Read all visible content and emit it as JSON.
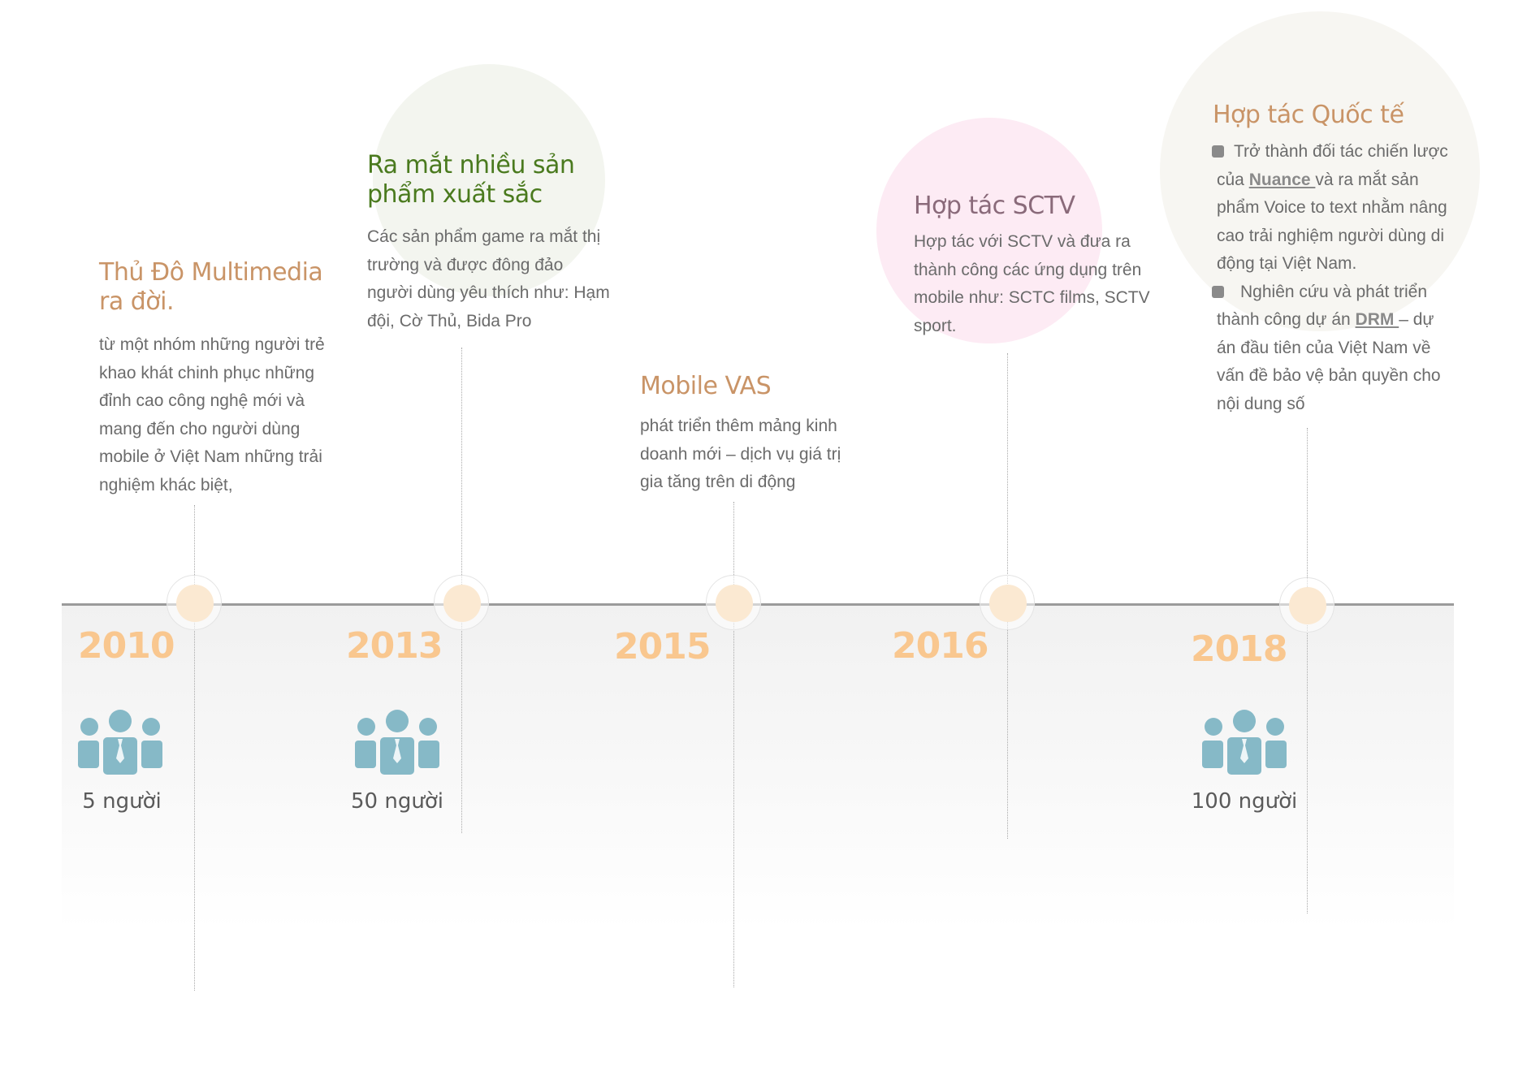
{
  "timeline": [
    {
      "year": "2010",
      "title": "Thủ Đô Multimedia ra đời.",
      "description": "từ một nhóm những người trẻ khao khát chinh phục những đỉnh cao công nghệ mới và mang đến cho người dùng mobile ở Việt Nam những trải nghiệm khác biệt,",
      "staff": "5 người"
    },
    {
      "year": "2013",
      "title": "Ra mắt nhiều sản phẩm xuất sắc",
      "description": "Các sản phẩm game ra mắt thị trường và được đông đảo người dùng yêu thích như: Hạm đội, Cờ Thủ, Bida Pro",
      "staff": "50 người"
    },
    {
      "year": "2015",
      "title": "Mobile VAS",
      "description": "phát triển thêm mảng kinh doanh mới – dịch vụ giá trị gia tăng trên di động"
    },
    {
      "year": "2016",
      "title": "Hợp tác SCTV",
      "description": "Hợp tác với SCTV và đưa ra thành công các ứng dụng trên mobile như: SCTC films, SCTV sport."
    },
    {
      "year": "2018",
      "title": "Hợp tác Quốc tế",
      "bullets": [
        {
          "before": "Trở thành đối tác chiến lược của ",
          "link": "Nuance ",
          "after": "và ra mắt sản phẩm Voice to text nhằm nâng cao trải nghiệm người dùng di động tại Việt Nam."
        },
        {
          "before": "Nghiên cứu và phát triển thành công dự án ",
          "link": "DRM ",
          "after": "– dự án đầu tiên của Việt Nam về vấn đề bảo vệ bản quyền cho nội dung số"
        }
      ],
      "staff": "100 người"
    }
  ],
  "colors": {
    "year": "#f9c78f",
    "title_tan": "#c99467",
    "title_green": "#4a7a1e",
    "title_mauve": "#8a6a7a",
    "people_icon": "#86b9c7",
    "axis": "#9b9b9b",
    "bubble_green": "#f3f5ef",
    "bubble_pink": "#fdebf4",
    "bubble_beige": "#f7f6f2"
  },
  "icons": [
    "people-icon"
  ]
}
